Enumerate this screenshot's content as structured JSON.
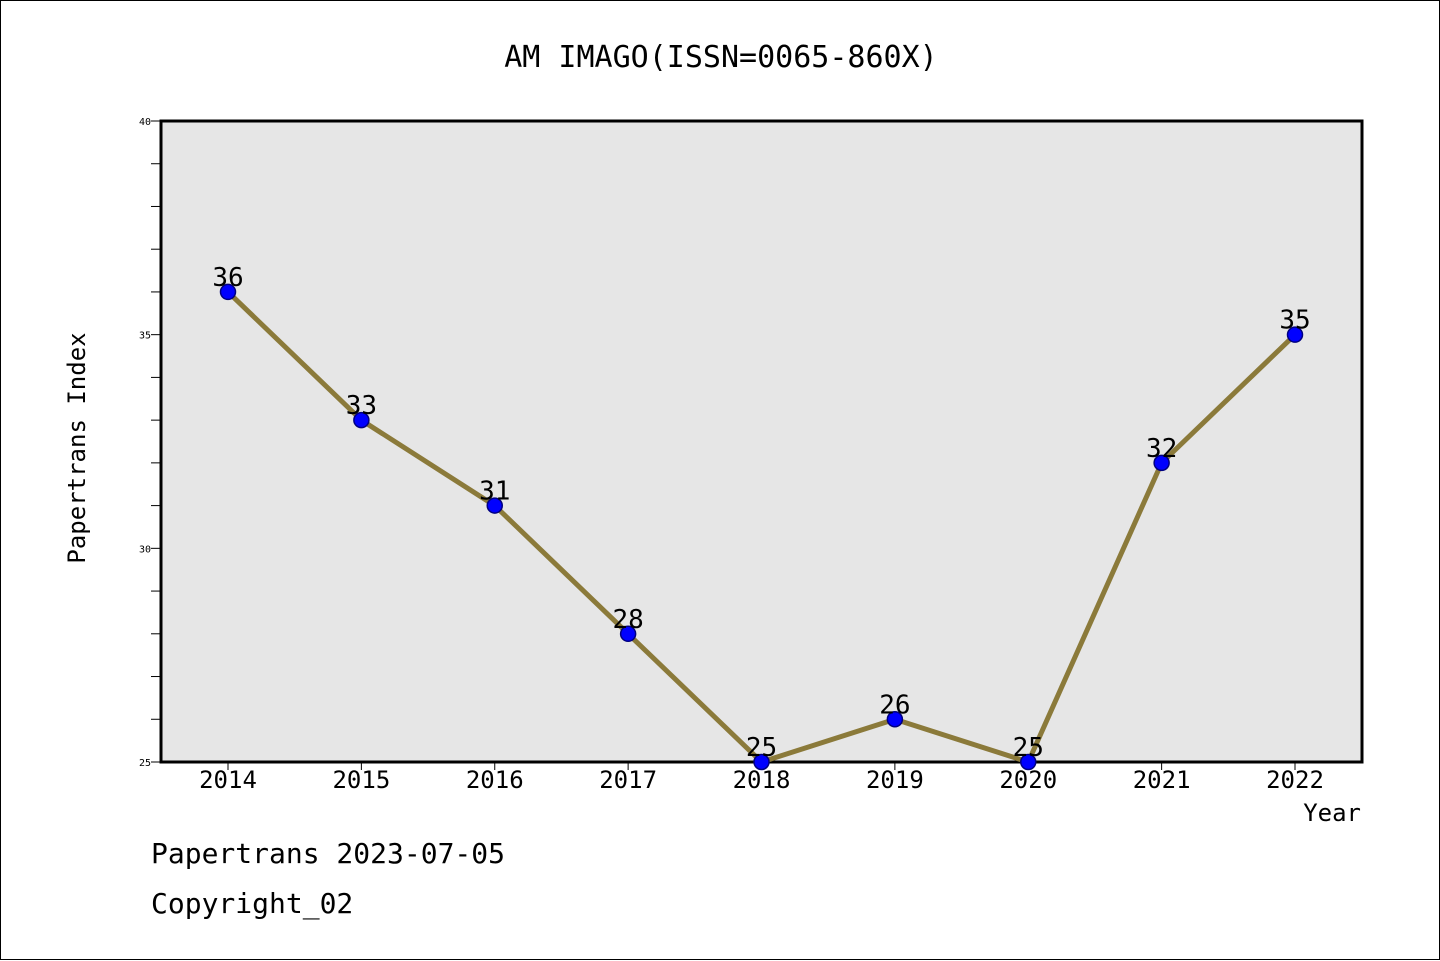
{
  "chart_data": {
    "type": "line",
    "title": "AM IMAGO(ISSN=0065-860X)",
    "xlabel": "Year",
    "ylabel": "Papertrans Index",
    "categories": [
      "2014",
      "2015",
      "2016",
      "2017",
      "2018",
      "2019",
      "2020",
      "2021",
      "2022"
    ],
    "series": [
      {
        "values": [
          36,
          33,
          31,
          28,
          25,
          26,
          25,
          32,
          35
        ]
      }
    ],
    "ylim": [
      25,
      40
    ],
    "yticks": [
      "25",
      "30",
      "35",
      "40"
    ],
    "grid": false,
    "legend": "none",
    "colors": {
      "line": "#8B7A3A",
      "marker": "#0000FF",
      "marker_edge": "#000080",
      "plot_bg": "#E6E6E6"
    }
  },
  "footer": {
    "line1": "Papertrans 2023-07-05",
    "line2": "Copyright_02"
  }
}
